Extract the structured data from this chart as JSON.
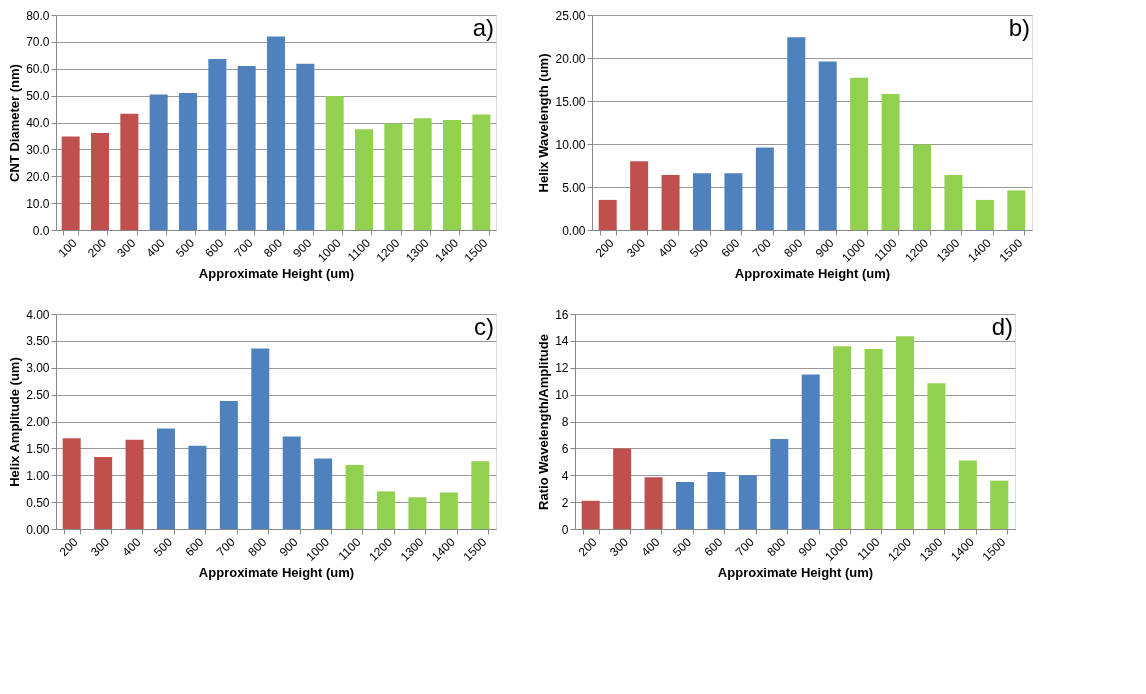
{
  "chart_data": [
    {
      "type": "bar",
      "xlabel": "Approximate Height (um)",
      "ylabel": "CNT Diameter (nm)",
      "annotations": [
        "a)"
      ],
      "grid": "y",
      "categories": [
        "100",
        "200",
        "300",
        "400",
        "500",
        "600",
        "700",
        "800",
        "900",
        "1000",
        "1100",
        "1200",
        "1300",
        "1400",
        "1500"
      ],
      "values": [
        34.8,
        36.1,
        43.3,
        50.4,
        51.0,
        63.6,
        61.0,
        72.0,
        61.9,
        49.9,
        37.5,
        39.6,
        41.6,
        40.9,
        43.0
      ],
      "colors": [
        "#c0504d",
        "#c0504d",
        "#c0504d",
        "#4f81bd",
        "#4f81bd",
        "#4f81bd",
        "#4f81bd",
        "#4f81bd",
        "#4f81bd",
        "#92d050",
        "#92d050",
        "#92d050",
        "#92d050",
        "#92d050",
        "#92d050"
      ],
      "ylim": [
        0,
        80
      ],
      "yticks": [
        {
          "value": 0,
          "label": "0.0"
        },
        {
          "value": 10,
          "label": "10.0"
        },
        {
          "value": 20,
          "label": "20.0"
        },
        {
          "value": 30,
          "label": "30.0"
        },
        {
          "value": 40,
          "label": "40.0"
        },
        {
          "value": 50,
          "label": "50.0"
        },
        {
          "value": 60,
          "label": "60.0"
        },
        {
          "value": 70,
          "label": "70.0"
        },
        {
          "value": 80,
          "label": "80.0"
        }
      ]
    },
    {
      "type": "bar",
      "xlabel": "Approximate Height (um)",
      "ylabel": "Helix Wavelength (um)",
      "annotations": [
        "b)"
      ],
      "grid": "y",
      "categories": [
        "200",
        "300",
        "400",
        "500",
        "600",
        "700",
        "800",
        "900",
        "1000",
        "1100",
        "1200",
        "1300",
        "1400",
        "1500"
      ],
      "values": [
        3.5,
        8.0,
        6.4,
        6.6,
        6.6,
        9.6,
        22.4,
        19.6,
        17.7,
        15.8,
        9.95,
        6.4,
        3.5,
        4.6
      ],
      "colors": [
        "#c0504d",
        "#c0504d",
        "#c0504d",
        "#4f81bd",
        "#4f81bd",
        "#4f81bd",
        "#4f81bd",
        "#4f81bd",
        "#92d050",
        "#92d050",
        "#92d050",
        "#92d050",
        "#92d050",
        "#92d050"
      ],
      "ylim": [
        0,
        25
      ],
      "yticks": [
        {
          "value": 0,
          "label": "0.00"
        },
        {
          "value": 5,
          "label": "5.00"
        },
        {
          "value": 10,
          "label": "10.00"
        },
        {
          "value": 15,
          "label": "15.00"
        },
        {
          "value": 20,
          "label": "20.00"
        },
        {
          "value": 25,
          "label": "25.00"
        }
      ]
    },
    {
      "type": "bar",
      "xlabel": "Approximate Height (um)",
      "ylabel": "Helix Amplitude (um)",
      "annotations": [
        "c)"
      ],
      "grid": "y",
      "categories": [
        "200",
        "300",
        "400",
        "500",
        "600",
        "700",
        "800",
        "900",
        "1000",
        "1100",
        "1200",
        "1300",
        "1400",
        "1500"
      ],
      "values": [
        1.69,
        1.34,
        1.66,
        1.87,
        1.55,
        2.38,
        3.36,
        1.72,
        1.31,
        1.19,
        0.7,
        0.59,
        0.68,
        1.26
      ],
      "colors": [
        "#c0504d",
        "#c0504d",
        "#c0504d",
        "#4f81bd",
        "#4f81bd",
        "#4f81bd",
        "#4f81bd",
        "#4f81bd",
        "#4f81bd",
        "#92d050",
        "#92d050",
        "#92d050",
        "#92d050",
        "#92d050"
      ],
      "ylim": [
        0,
        4
      ],
      "yticks": [
        {
          "value": 0,
          "label": "0.00"
        },
        {
          "value": 0.5,
          "label": "0.50"
        },
        {
          "value": 1,
          "label": "1.00"
        },
        {
          "value": 1.5,
          "label": "1.50"
        },
        {
          "value": 2,
          "label": "2.00"
        },
        {
          "value": 2.5,
          "label": "2.50"
        },
        {
          "value": 3,
          "label": "3.00"
        },
        {
          "value": 3.5,
          "label": "3.50"
        },
        {
          "value": 4,
          "label": "4.00"
        }
      ]
    },
    {
      "type": "bar",
      "xlabel": "Approximate Height (um)",
      "ylabel": "Ratio Wavelength/Amplitude",
      "annotations": [
        "d)"
      ],
      "grid": "y",
      "categories": [
        "200",
        "300",
        "400",
        "500",
        "600",
        "700",
        "800",
        "900",
        "1000",
        "1100",
        "1200",
        "1300",
        "1400",
        "1500"
      ],
      "values": [
        2.1,
        6.0,
        3.85,
        3.5,
        4.25,
        4.0,
        6.7,
        11.5,
        13.6,
        13.4,
        14.35,
        10.85,
        5.1,
        3.6
      ],
      "colors": [
        "#c0504d",
        "#c0504d",
        "#c0504d",
        "#4f81bd",
        "#4f81bd",
        "#4f81bd",
        "#4f81bd",
        "#4f81bd",
        "#92d050",
        "#92d050",
        "#92d050",
        "#92d050",
        "#92d050",
        "#92d050"
      ],
      "ylim": [
        0,
        16
      ],
      "yticks": [
        0,
        2,
        4,
        6,
        8,
        10,
        12,
        14,
        16
      ]
    }
  ]
}
